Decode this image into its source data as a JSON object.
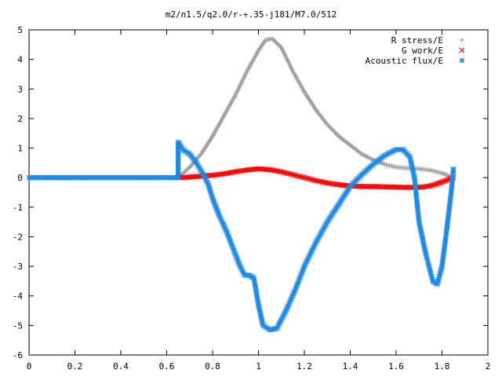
{
  "chart_data": {
    "type": "scatter",
    "title": "m2/n1.5/q2.0/r-+.35-j181/M7.0/512",
    "xlabel": "",
    "ylabel": "",
    "xlim": [
      0,
      2
    ],
    "ylim": [
      -6,
      5
    ],
    "xticks": [
      0,
      0.2,
      0.4,
      0.6,
      0.8,
      1,
      1.2,
      1.4,
      1.6,
      1.8,
      2
    ],
    "yticks": [
      -6,
      -5,
      -4,
      -3,
      -2,
      -1,
      0,
      1,
      2,
      3,
      4,
      5
    ],
    "grid": false,
    "legend_position": "top-right",
    "series": [
      {
        "name": "R stress/E",
        "marker": "plus",
        "color": "#a0a0a0",
        "points": [
          [
            0.65,
            0.0
          ],
          [
            0.7,
            0.35
          ],
          [
            0.75,
            0.8
          ],
          [
            0.8,
            1.4
          ],
          [
            0.85,
            2.1
          ],
          [
            0.9,
            2.8
          ],
          [
            0.95,
            3.6
          ],
          [
            1.0,
            4.3
          ],
          [
            1.03,
            4.65
          ],
          [
            1.06,
            4.7
          ],
          [
            1.1,
            4.4
          ],
          [
            1.15,
            3.6
          ],
          [
            1.2,
            2.9
          ],
          [
            1.25,
            2.3
          ],
          [
            1.3,
            1.8
          ],
          [
            1.35,
            1.4
          ],
          [
            1.4,
            1.1
          ],
          [
            1.45,
            0.8
          ],
          [
            1.5,
            0.6
          ],
          [
            1.55,
            0.45
          ],
          [
            1.6,
            0.35
          ],
          [
            1.65,
            0.32
          ],
          [
            1.7,
            0.3
          ],
          [
            1.75,
            0.25
          ],
          [
            1.8,
            0.15
          ],
          [
            1.85,
            0.0
          ]
        ]
      },
      {
        "name": "G work/E",
        "marker": "cross",
        "color": "#ff0000",
        "points": [
          [
            0.65,
            0.0
          ],
          [
            0.7,
            0.02
          ],
          [
            0.75,
            0.05
          ],
          [
            0.8,
            0.08
          ],
          [
            0.85,
            0.13
          ],
          [
            0.9,
            0.2
          ],
          [
            0.95,
            0.26
          ],
          [
            1.0,
            0.3
          ],
          [
            1.05,
            0.27
          ],
          [
            1.1,
            0.2
          ],
          [
            1.15,
            0.1
          ],
          [
            1.2,
            0.0
          ],
          [
            1.25,
            -0.1
          ],
          [
            1.3,
            -0.18
          ],
          [
            1.35,
            -0.24
          ],
          [
            1.4,
            -0.28
          ],
          [
            1.45,
            -0.3
          ],
          [
            1.5,
            -0.3
          ],
          [
            1.55,
            -0.31
          ],
          [
            1.6,
            -0.32
          ],
          [
            1.65,
            -0.33
          ],
          [
            1.7,
            -0.33
          ],
          [
            1.75,
            -0.28
          ],
          [
            1.8,
            -0.15
          ],
          [
            1.85,
            0.0
          ]
        ]
      },
      {
        "name": "Acoustic flux/E",
        "marker": "star",
        "color": "#1e8ae6",
        "points": [
          [
            0.0,
            0.0
          ],
          [
            0.1,
            0.0
          ],
          [
            0.2,
            0.0
          ],
          [
            0.3,
            0.0
          ],
          [
            0.4,
            0.0
          ],
          [
            0.5,
            0.0
          ],
          [
            0.6,
            0.0
          ],
          [
            0.65,
            0.0
          ],
          [
            0.65,
            1.2
          ],
          [
            0.67,
            0.95
          ],
          [
            0.7,
            0.8
          ],
          [
            0.73,
            0.5
          ],
          [
            0.76,
            0.1
          ],
          [
            0.78,
            -0.2
          ],
          [
            0.8,
            -0.7
          ],
          [
            0.83,
            -1.3
          ],
          [
            0.86,
            -1.8
          ],
          [
            0.88,
            -2.2
          ],
          [
            0.9,
            -2.6
          ],
          [
            0.92,
            -3.0
          ],
          [
            0.94,
            -3.3
          ],
          [
            0.96,
            -3.3
          ],
          [
            0.98,
            -3.4
          ],
          [
            1.0,
            -4.3
          ],
          [
            1.02,
            -5.0
          ],
          [
            1.05,
            -5.15
          ],
          [
            1.08,
            -5.1
          ],
          [
            1.12,
            -4.5
          ],
          [
            1.16,
            -3.8
          ],
          [
            1.2,
            -3.0
          ],
          [
            1.25,
            -2.2
          ],
          [
            1.3,
            -1.5
          ],
          [
            1.35,
            -0.9
          ],
          [
            1.4,
            -0.3
          ],
          [
            1.45,
            0.1
          ],
          [
            1.5,
            0.45
          ],
          [
            1.55,
            0.75
          ],
          [
            1.6,
            0.95
          ],
          [
            1.63,
            0.95
          ],
          [
            1.66,
            0.7
          ],
          [
            1.68,
            0.0
          ],
          [
            1.7,
            -1.5
          ],
          [
            1.73,
            -2.6
          ],
          [
            1.76,
            -3.5
          ],
          [
            1.78,
            -3.6
          ],
          [
            1.8,
            -3.0
          ],
          [
            1.82,
            -1.8
          ],
          [
            1.84,
            -0.5
          ],
          [
            1.85,
            0.3
          ]
        ]
      }
    ]
  }
}
